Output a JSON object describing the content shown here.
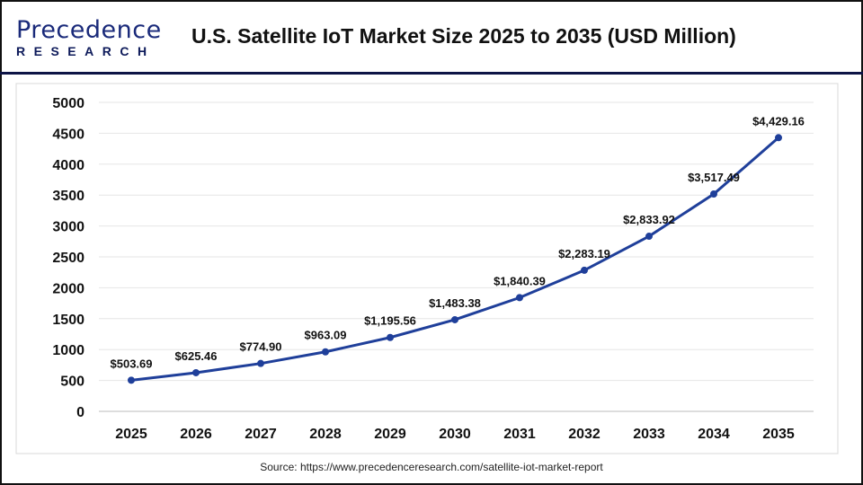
{
  "header": {
    "logo_text_top": "Precedence",
    "logo_text_bottom": "RESEARCH",
    "title": "U.S. Satellite IoT Market Size 2025 to 2035 (USD Million)"
  },
  "source": "Source: https://www.precedenceresearch.com/satellite-iot-market-report",
  "chart_data": {
    "type": "line",
    "title": "U.S. Satellite IoT Market Size 2025 to 2035 (USD Million)",
    "categories": [
      "2025",
      "2026",
      "2027",
      "2028",
      "2029",
      "2030",
      "2031",
      "2032",
      "2033",
      "2034",
      "2035"
    ],
    "values": [
      503.69,
      625.46,
      774.9,
      963.09,
      1195.56,
      1483.38,
      1840.39,
      2283.19,
      2833.92,
      3517.49,
      4429.16
    ],
    "data_labels": [
      "$503.69",
      "$625.46",
      "$774.90",
      "$963.09",
      "$1,195.56",
      "$1,483.38",
      "$1,840.39",
      "$2,283.19",
      "$2,833.92",
      "$3,517.49",
      "$4,429.16"
    ],
    "ylim": [
      0,
      5000
    ],
    "yticks": [
      0,
      500,
      1000,
      1500,
      2000,
      2500,
      3000,
      3500,
      4000,
      4500,
      5000
    ],
    "grid": true,
    "line_color": "#1f3f9a"
  }
}
